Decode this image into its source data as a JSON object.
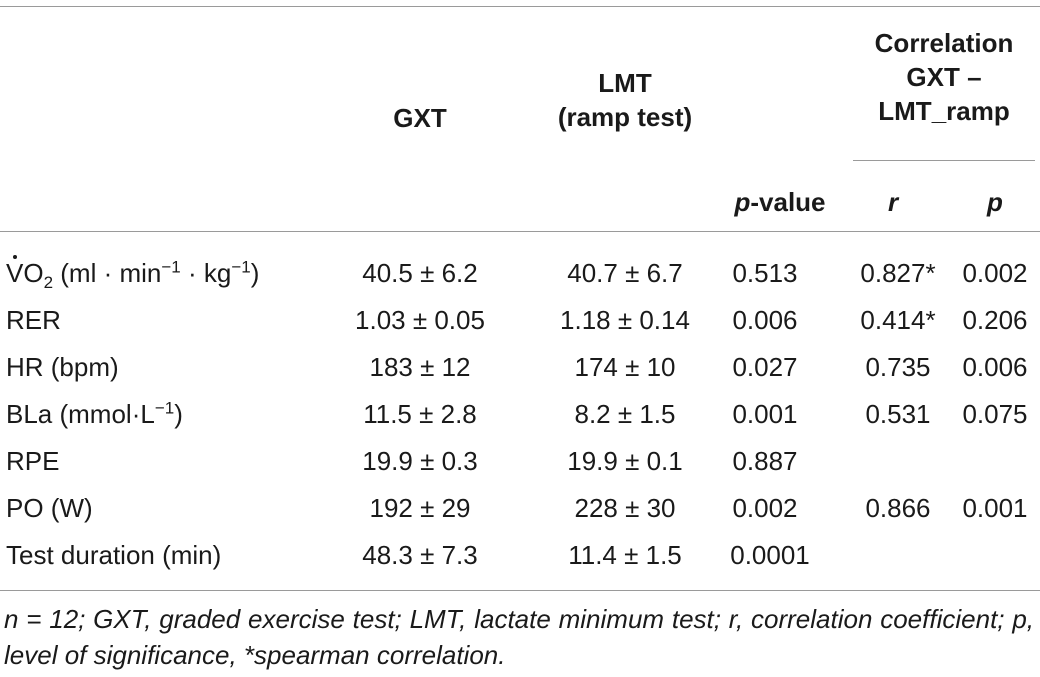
{
  "table": {
    "headers": {
      "gxt": "GXT",
      "lmt_line1": "LMT",
      "lmt_line2": "(ramp test)",
      "pvalue_italic": "p",
      "pvalue_rest": "-value",
      "corr_line1": "Correlation",
      "corr_line2": "GXT –",
      "corr_line3": "LMT_ramp",
      "r": "r",
      "p": "p"
    },
    "vo2_label": {
      "v": "V",
      "o": "O",
      "sub2": "2",
      "units_a": " (ml · min",
      "sup1": "−1",
      "units_b": " · kg",
      "sup2": "−1",
      "units_c": ")"
    },
    "bla_label": {
      "base": "BLa (mmol·L",
      "sup": "−1",
      "close": ")"
    },
    "rows": [
      {
        "label": "",
        "gxt": "40.5 ± 6.2",
        "lmt": "40.7 ± 6.7",
        "pvalue": "0.513",
        "r": "0.827*",
        "p": "0.002"
      },
      {
        "label": "RER",
        "gxt": "1.03 ± 0.05",
        "lmt": "1.18 ± 0.14",
        "pvalue": "0.006",
        "r": "0.414*",
        "p": "0.206"
      },
      {
        "label": "HR (bpm)",
        "gxt": "183 ± 12",
        "lmt": "174 ± 10",
        "pvalue": "0.027",
        "r": "0.735",
        "p": "0.006"
      },
      {
        "label": "",
        "gxt": "11.5 ± 2.8",
        "lmt": "8.2 ± 1.5",
        "pvalue": "0.001",
        "r": "0.531",
        "p": "0.075"
      },
      {
        "label": "RPE",
        "gxt": "19.9 ± 0.3",
        "lmt": "19.9 ± 0.1",
        "pvalue": "0.887",
        "r": "",
        "p": ""
      },
      {
        "label": "PO (W)",
        "gxt": "192 ± 29",
        "lmt": "228 ± 30",
        "pvalue": "0.002",
        "r": "0.866",
        "p": "0.001"
      },
      {
        "label": "Test duration (min)",
        "gxt": "48.3 ± 7.3",
        "lmt": "11.4 ± 1.5",
        "pvalue": "0.0001",
        "r": "",
        "p": ""
      }
    ],
    "footnote": "n = 12; GXT, graded exercise test; LMT, lactate minimum test; r, correlation coefficient; p, level of significance, *spearman correlation."
  }
}
